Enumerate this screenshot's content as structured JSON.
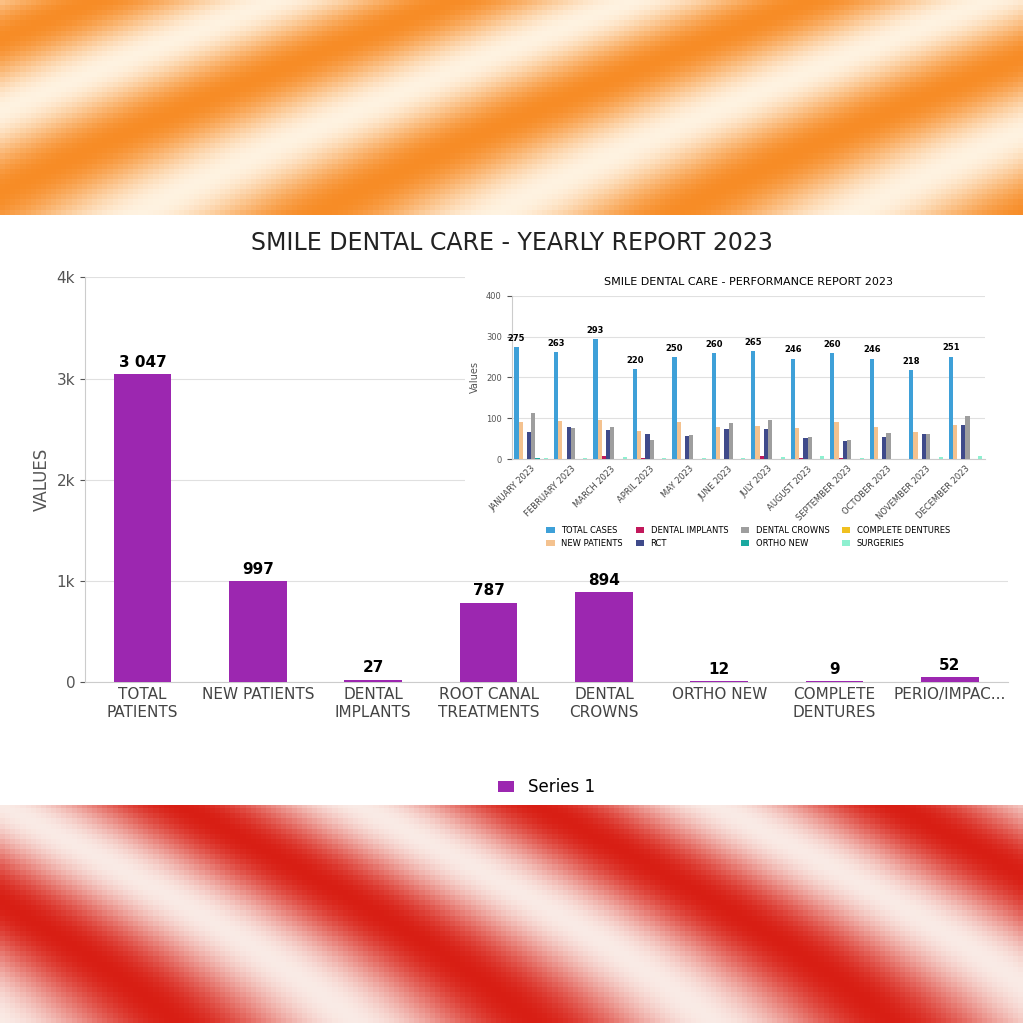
{
  "chart_data": [
    {
      "type": "bar",
      "title": "SMILE DENTAL CARE - YEARLY REPORT 2023",
      "y_label": "VALUES",
      "categories": [
        "TOTAL PATIENTS",
        "NEW PATIENTS",
        "DENTAL IMPLANTS",
        "ROOT CANAL TREATMENTS",
        "DENTAL CROWNS",
        "ORTHO NEW",
        "COMPLETE DENTURES",
        "PERIO/IMPAC..."
      ],
      "series": [
        {
          "name": "Series 1",
          "color": "#9c27b0",
          "values": [
            3047,
            997,
            27,
            787,
            894,
            12,
            9,
            52
          ],
          "value_labels": [
            "3 047",
            "997",
            "27",
            "787",
            "894",
            "12",
            "9",
            "52"
          ]
        }
      ],
      "ylim": [
        0,
        4000
      ],
      "yticks": [
        0,
        {
          "value": 1000,
          "label": "1k"
        },
        {
          "value": 2000,
          "label": "2k"
        },
        {
          "value": 3000,
          "label": "3k"
        },
        {
          "value": 4000,
          "label": "4k"
        }
      ],
      "grid": true,
      "legend": "bottom",
      "data_labels": true
    },
    {
      "type": "bar",
      "title": "SMILE DENTAL CARE - PERFORMANCE REPORT 2023",
      "y_label": "Values",
      "categories": [
        "JANUARY 2023",
        "FEBRUARY 2023",
        "MARCH 2023",
        "APRIL 2023",
        "MAY 2023",
        "JUNE 2023",
        "JULY 2023",
        "AUGUST 2023",
        "SEPTEMBER 2023",
        "OCTOBER 2023",
        "NOVEMBER 2023",
        "DECEMBER 2023"
      ],
      "series": [
        {
          "name": "TOTAL CASES",
          "color": "#3ea0d8",
          "data_labels": true,
          "values": [
            275,
            263,
            293,
            220,
            250,
            260,
            265,
            246,
            260,
            246,
            218,
            251
          ]
        },
        {
          "name": "NEW PATIENTS",
          "color": "#f4c28f",
          "values": [
            91,
            93,
            96,
            69,
            90,
            80,
            82,
            77,
            90,
            79,
            66,
            84
          ]
        },
        {
          "name": "DENTAL IMPLANTS",
          "color": "#c2185b",
          "values": [
            0,
            0,
            7,
            3,
            2,
            0,
            7,
            3,
            4,
            0,
            1,
            0
          ]
        },
        {
          "name": "RCT",
          "color": "#3f4a8a",
          "values": [
            68,
            80,
            71,
            62,
            57,
            75,
            75,
            52,
            46,
            55,
            62,
            84
          ]
        },
        {
          "name": "DENTAL CROWNS",
          "color": "#9e9e9e",
          "values": [
            113,
            76,
            78,
            48,
            60,
            88,
            96,
            54,
            48,
            65,
            62,
            106
          ]
        },
        {
          "name": "ORTHO NEW",
          "color": "#1aa9a0",
          "values": [
            4,
            1,
            0,
            2,
            1,
            2,
            0,
            1,
            1,
            0,
            0,
            0
          ]
        },
        {
          "name": "COMPLETE DENTURES",
          "color": "#f0c020",
          "values": [
            0,
            0,
            0,
            2,
            0,
            1,
            0,
            1,
            1,
            2,
            1,
            1
          ]
        },
        {
          "name": "SURGERIES",
          "color": "#8ef0d0",
          "values": [
            3,
            3,
            6,
            3,
            3,
            3,
            6,
            7,
            3,
            2,
            5,
            8
          ]
        }
      ],
      "ylim": [
        0,
        400
      ],
      "yticks": [
        0,
        100,
        200,
        300,
        400
      ],
      "grid": true,
      "legend": "bottom",
      "data_labels": false
    }
  ]
}
